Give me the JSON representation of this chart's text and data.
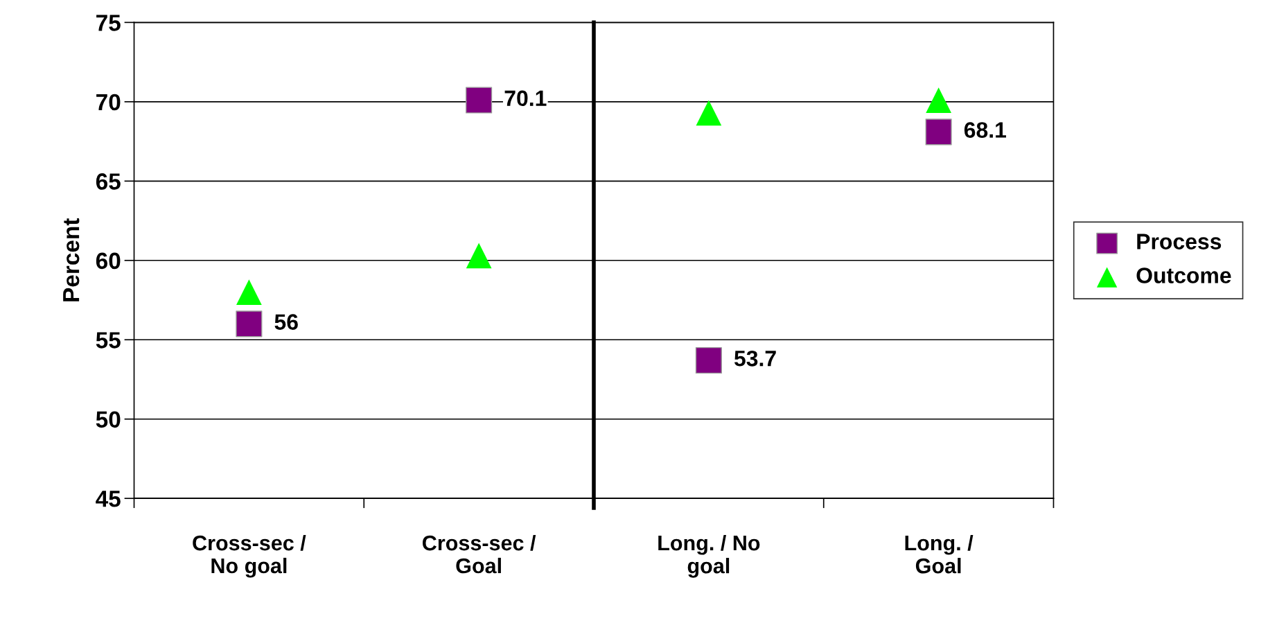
{
  "chart_data": [
    {
      "type": "scatter",
      "ylabel": "Percent",
      "categories": [
        "Cross-sec /\nNo goal",
        "Cross-sec /\nGoal"
      ],
      "series": [
        {
          "color": "#800080",
          "marker": "square",
          "values": [
            56,
            70.1
          ],
          "value_labels": [
            "56",
            "70.1"
          ]
        },
        {
          "color": "#00ff00",
          "marker": "triangle",
          "values": [
            58,
            60.3
          ]
        }
      ],
      "ylim": [
        45,
        75
      ],
      "yticks": [
        45,
        50,
        55,
        60,
        65,
        70,
        75
      ],
      "grid": "y"
    },
    {
      "type": "scatter",
      "categories": [
        "Long. / No\ngoal",
        "Long. /\nGoal"
      ],
      "series": [
        {
          "name": "Process",
          "color": "#800080",
          "marker": "square",
          "values": [
            53.7,
            68.1
          ],
          "value_labels": [
            "53.7",
            "68.1"
          ]
        },
        {
          "name": "Outcome",
          "color": "#00ff00",
          "marker": "triangle",
          "values": [
            69.3,
            70.1
          ]
        }
      ],
      "ylim": [
        45,
        75
      ],
      "yticks": [
        45,
        50,
        55,
        60,
        65,
        70,
        75
      ],
      "grid": "y",
      "tick_labels": "x",
      "legend": "right"
    }
  ]
}
